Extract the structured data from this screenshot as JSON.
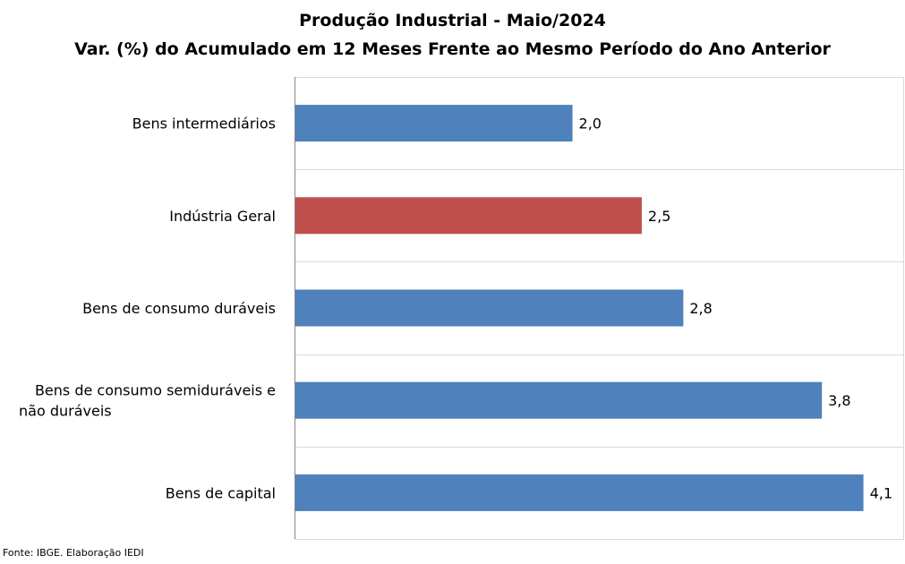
{
  "chart_data": {
    "type": "bar",
    "orientation": "horizontal",
    "title": "Produção Industrial - Maio/2024",
    "subtitle": "Var. (%) do Acumulado em 12 Meses Frente ao Mesmo Período do Ano Anterior",
    "categories": [
      [
        "Bens intermediários"
      ],
      [
        "Indústria Geral"
      ],
      [
        "Bens de consumo duráveis"
      ],
      [
        "Bens de consumo semiduráveis e",
        "não duráveis"
      ],
      [
        "Bens de capital"
      ]
    ],
    "values": [
      2.0,
      2.5,
      2.8,
      3.8,
      4.1
    ],
    "value_labels": [
      "2,0",
      "2,5",
      "2,8",
      "3,8",
      "4,1"
    ],
    "bar_colors": [
      "#4F81BD",
      "#C0504D",
      "#4F81BD",
      "#4F81BD",
      "#4F81BD"
    ],
    "xlim": [
      0,
      4.4
    ],
    "grid": true,
    "legend": "none"
  },
  "source": "Fonte: IBGE. Elaboração IEDI",
  "colors": {
    "bar_primary": "#4F81BD",
    "bar_highlight": "#C0504D",
    "gridline": "#D9D9D9",
    "axis": "#868686"
  }
}
